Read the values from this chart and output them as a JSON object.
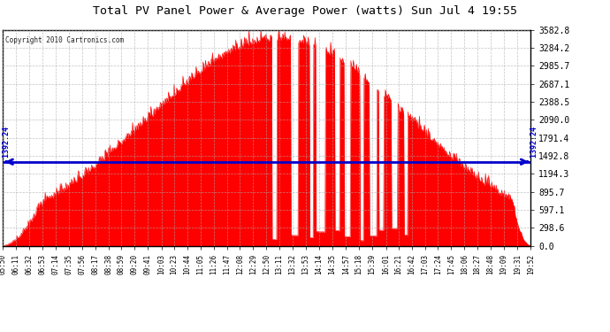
{
  "title": "Total PV Panel Power & Average Power (watts) Sun Jul 4 19:55",
  "copyright": "Copyright 2010 Cartronics.com",
  "average_power": 1392.24,
  "y_max": 3582.8,
  "y_ticks": [
    0.0,
    298.6,
    597.1,
    895.7,
    1194.3,
    1492.8,
    1791.4,
    2090.0,
    2388.5,
    2687.1,
    2985.7,
    3284.2,
    3582.8
  ],
  "x_labels": [
    "05:50",
    "06:11",
    "06:32",
    "06:53",
    "07:14",
    "07:35",
    "07:56",
    "08:17",
    "08:38",
    "08:59",
    "09:20",
    "09:41",
    "10:03",
    "10:23",
    "10:44",
    "11:05",
    "11:26",
    "11:47",
    "12:08",
    "12:29",
    "12:50",
    "13:11",
    "13:32",
    "13:53",
    "14:14",
    "14:35",
    "14:57",
    "15:18",
    "15:39",
    "16:01",
    "16:21",
    "16:42",
    "17:03",
    "17:24",
    "17:45",
    "18:06",
    "18:27",
    "18:48",
    "19:09",
    "19:31",
    "19:52"
  ],
  "bar_color": "#FF0000",
  "avg_line_color": "#0000CC",
  "background_color": "#FFFFFF",
  "grid_color": "#AAAAAA",
  "title_color": "#000000",
  "avg_label_color": "#0000CC",
  "border_color": "#000000",
  "peak_time_min": 440,
  "sigma": 210,
  "peak_power": 3400,
  "n_points": 840,
  "total_minutes": 842
}
